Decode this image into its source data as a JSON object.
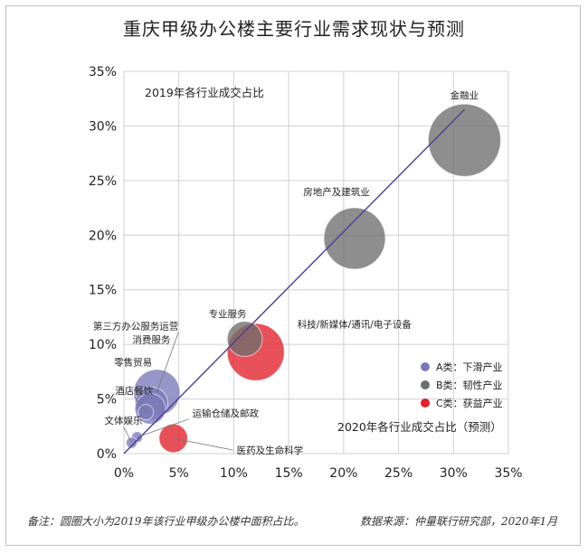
{
  "title": "重庆甲级办公楼主要行业需求现状与预测",
  "footer": {
    "note": "备注：圆圈大小为2019年该行业甲级办公楼中面积占比。",
    "source": "数据来源：仲量联行研究部，2020年1月"
  },
  "chart_data": {
    "type": "scatter",
    "title": "重庆甲级办公楼主要行业需求现状与预测",
    "ylabel": "2019年各行业成交占比",
    "xlabel": "2020年各行业成交占比（预测）",
    "xlim": [
      0,
      35
    ],
    "ylim": [
      0,
      35
    ],
    "x_ticks": [
      "0%",
      "5%",
      "10%",
      "15%",
      "20%",
      "25%",
      "30%",
      "35%"
    ],
    "y_ticks": [
      "0%",
      "5%",
      "10%",
      "15%",
      "20%",
      "25%",
      "30%",
      "35%"
    ],
    "grid": true,
    "trend_line": [
      [
        0,
        0
      ],
      [
        31,
        31.5
      ]
    ],
    "categories": [
      {
        "name": "A类：下滑产业",
        "color": "#7b78b8"
      },
      {
        "name": "B类：韧性产业",
        "color": "#6e6e6e"
      },
      {
        "name": "C类：获益产业",
        "color": "#e2202a"
      }
    ],
    "legend_position": "center-right",
    "points": [
      {
        "label": "金融业",
        "x": 31,
        "y": 28.7,
        "size": 3.3,
        "category": 1
      },
      {
        "label": "房地产及建筑业",
        "x": 21,
        "y": 19.7,
        "size": 2.8,
        "category": 1
      },
      {
        "label": "专业服务",
        "x": 11,
        "y": 10.5,
        "size": 1.6,
        "category": 1
      },
      {
        "label": "科技/新媒体/通讯/电子设备",
        "x": 12,
        "y": 9.3,
        "size": 2.6,
        "category": 2
      },
      {
        "label": "第三方办公服务运营",
        "x": 3,
        "y": 5.6,
        "size": 2.1,
        "category": 0
      },
      {
        "label": "消费服务",
        "x": 2.5,
        "y": 4.6,
        "size": 1.5,
        "category": 0
      },
      {
        "label": "零售贸易",
        "x": 2.4,
        "y": 4.1,
        "size": 1.4,
        "category": 0
      },
      {
        "label": "酒店餐饮",
        "x": 2,
        "y": 3.8,
        "size": 0.7,
        "category": 0
      },
      {
        "label": "运输仓储及邮政",
        "x": 1.2,
        "y": 1.5,
        "size": 0.5,
        "category": 0
      },
      {
        "label": "文体娱乐",
        "x": 0.7,
        "y": 1.0,
        "size": 0.5,
        "category": 0
      },
      {
        "label": "医药及生命科学",
        "x": 4.5,
        "y": 1.4,
        "size": 1.3,
        "category": 2
      }
    ]
  }
}
